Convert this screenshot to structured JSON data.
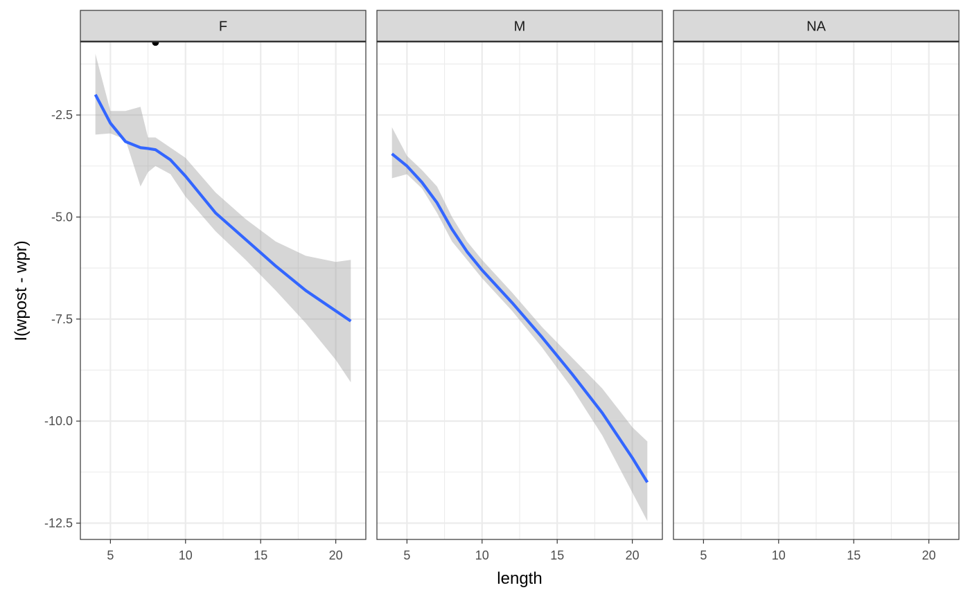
{
  "chart_data": {
    "type": "line",
    "facet_by": "sex",
    "panels": [
      "F",
      "M",
      "NA"
    ],
    "xlabel": "length",
    "ylabel": "I(wpost - wpr)",
    "xlim": [
      3,
      22
    ],
    "ylim": [
      -12.9,
      -0.7
    ],
    "x_ticks": [
      5,
      10,
      15,
      20
    ],
    "y_ticks": [
      -2.5,
      -5.0,
      -7.5,
      -10.0,
      -12.5
    ],
    "y_tick_labels": [
      "-2.5",
      "-5.0",
      "-7.5",
      "-10.0",
      "-12.5"
    ],
    "grid": true,
    "colors": {
      "line": "#3366FF",
      "ribbon": "#999999",
      "strip_fill": "#d9d9d9",
      "grid": "#ebebeb",
      "point": "#000000"
    },
    "series": [
      {
        "panel": "F",
        "x": [
          4,
          5,
          6,
          7,
          7.5,
          8,
          9,
          10,
          12,
          14,
          16,
          18,
          20,
          21
        ],
        "y": [
          -2.0,
          -2.7,
          -3.15,
          -3.3,
          -3.32,
          -3.35,
          -3.6,
          -4.0,
          -4.9,
          -5.55,
          -6.2,
          -6.8,
          -7.3,
          -7.55
        ],
        "ymin": [
          -2.98,
          -2.95,
          -3.1,
          -4.25,
          -3.9,
          -3.75,
          -3.95,
          -4.5,
          -5.35,
          -6.05,
          -6.8,
          -7.6,
          -8.5,
          -9.05
        ],
        "ymax": [
          -1.0,
          -2.4,
          -2.4,
          -2.3,
          -3.05,
          -3.05,
          -3.3,
          -3.55,
          -4.4,
          -5.05,
          -5.6,
          -5.95,
          -6.1,
          -6.05
        ]
      },
      {
        "panel": "M",
        "x": [
          4,
          5,
          6,
          7,
          8,
          9,
          10,
          12,
          14,
          16,
          18,
          20,
          21
        ],
        "y": [
          -3.45,
          -3.75,
          -4.15,
          -4.65,
          -5.3,
          -5.85,
          -6.3,
          -7.1,
          -7.95,
          -8.85,
          -9.8,
          -10.9,
          -11.5
        ],
        "ymin": [
          -4.05,
          -3.95,
          -4.3,
          -4.9,
          -5.6,
          -6.05,
          -6.5,
          -7.3,
          -8.2,
          -9.2,
          -10.35,
          -11.75,
          -12.45
        ],
        "ymax": [
          -2.8,
          -3.5,
          -3.85,
          -4.25,
          -5.0,
          -5.6,
          -6.05,
          -6.85,
          -7.7,
          -8.45,
          -9.2,
          -10.15,
          -10.5
        ]
      }
    ],
    "points": [
      {
        "panel": "F",
        "x": 8,
        "y": -0.72
      }
    ]
  }
}
